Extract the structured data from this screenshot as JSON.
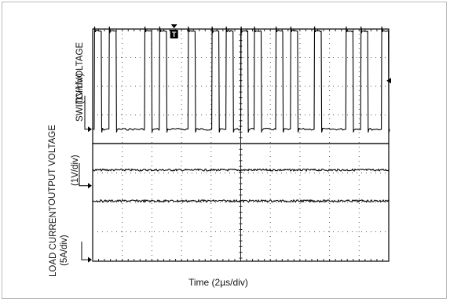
{
  "chart_data": {
    "type": "line",
    "title": "",
    "xlabel": "Time (2µs/div)",
    "x_divisions": 10,
    "grid": true,
    "trigger_marker": "T",
    "series": [
      {
        "name": "SWITCH VOLTAGE",
        "units": "(1V/div)",
        "panel": "top",
        "pulse_starts_div": [
          0.05,
          0.55,
          1.75,
          2.25,
          3.22,
          4.02,
          4.5,
          5.0,
          5.45,
          6.18,
          6.68,
          7.48,
          8.55,
          9.05,
          9.75
        ],
        "pulse_width_div": 0.24,
        "high_level_div": 7.9,
        "low_level_div": 1.0
      },
      {
        "name": "OUTPUT VOLTAGE",
        "units": "(1V/div)",
        "panel": "bottom",
        "level_div": 6.2
      },
      {
        "name": "LOAD CURRENT",
        "units": "(5A/div)",
        "panel": "bottom",
        "level_div": 4.1
      }
    ]
  },
  "labels": {
    "switch_name": "SWITCH VOLTAGE",
    "switch_units": "(1V/div)",
    "output_name": "OUTPUT VOLTAGE",
    "output_units": "(1V/div)",
    "load_name": "LOAD CURRENT",
    "load_units": "(5A/div)",
    "xlabel": "Time (2µs/div)"
  }
}
